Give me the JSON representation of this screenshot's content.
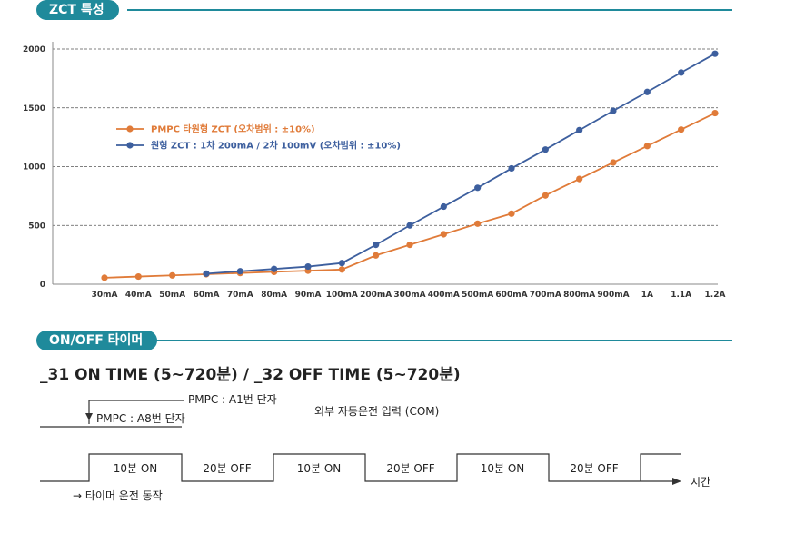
{
  "sections": {
    "zct_header": "ZCT 특성",
    "timer_header": "ON/OFF 타이머"
  },
  "colors": {
    "accent": "#1f8a9b",
    "series_orange": "#e07b39",
    "series_blue": "#3d5f9e"
  },
  "chart_data": {
    "type": "line",
    "title": "",
    "xlabel": "",
    "ylabel": "",
    "categories": [
      "30mA",
      "40mA",
      "50mA",
      "60mA",
      "70mA",
      "80mA",
      "90mA",
      "100mA",
      "200mA",
      "300mA",
      "400mA",
      "500mA",
      "600mA",
      "700mA",
      "800mA",
      "900mA",
      "1A",
      "1.1A",
      "1.2A"
    ],
    "ylim": [
      0,
      2000
    ],
    "yticks": [
      0,
      500,
      1000,
      1500,
      2000
    ],
    "grid": "horizontal dashed",
    "legend_position": "upper-left inside plot",
    "series": [
      {
        "name": "PMPC 타원형 ZCT (오차범위 : ±10%)",
        "color": "#e07b39",
        "values": [
          55,
          65,
          75,
          85,
          95,
          105,
          115,
          125,
          245,
          335,
          425,
          515,
          600,
          755,
          895,
          1035,
          1175,
          1315,
          1455
        ]
      },
      {
        "name": "원형 ZCT : 1차 200mA / 2차 100mV (오차범위 : ±10%)",
        "color": "#3d5f9e",
        "values": [
          null,
          null,
          null,
          90,
          110,
          130,
          150,
          180,
          335,
          500,
          660,
          820,
          985,
          1145,
          1310,
          1475,
          1635,
          1800,
          1960
        ]
      }
    ]
  },
  "timer": {
    "title": "_31 ON TIME (5~720분) / _32 OFF TIME (5~720분)",
    "label_a1": "PMPC : A1번 단자",
    "label_a8": "PMPC : A8번 단자",
    "external_input": "외부 자동운전 입력 (COM)",
    "segments": [
      "10분 ON",
      "20분 OFF",
      "10분 ON",
      "20분 OFF",
      "10분 ON",
      "20분 OFF"
    ],
    "time_label": "시간",
    "start_label": "→ 타이머 운전 동작"
  }
}
